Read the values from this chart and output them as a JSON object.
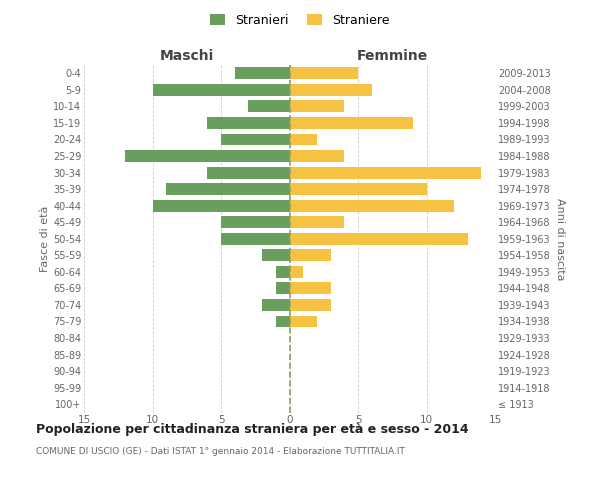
{
  "age_groups": [
    "100+",
    "95-99",
    "90-94",
    "85-89",
    "80-84",
    "75-79",
    "70-74",
    "65-69",
    "60-64",
    "55-59",
    "50-54",
    "45-49",
    "40-44",
    "35-39",
    "30-34",
    "25-29",
    "20-24",
    "15-19",
    "10-14",
    "5-9",
    "0-4"
  ],
  "birth_years": [
    "≤ 1913",
    "1914-1918",
    "1919-1923",
    "1924-1928",
    "1929-1933",
    "1934-1938",
    "1939-1943",
    "1944-1948",
    "1949-1953",
    "1954-1958",
    "1959-1963",
    "1964-1968",
    "1969-1973",
    "1974-1978",
    "1979-1983",
    "1984-1988",
    "1989-1993",
    "1994-1998",
    "1999-2003",
    "2004-2008",
    "2009-2013"
  ],
  "males": [
    0,
    0,
    0,
    0,
    0,
    1,
    2,
    1,
    1,
    2,
    5,
    5,
    10,
    9,
    6,
    12,
    5,
    6,
    3,
    10,
    4
  ],
  "females": [
    0,
    0,
    0,
    0,
    0,
    2,
    3,
    3,
    1,
    3,
    13,
    4,
    12,
    10,
    14,
    4,
    2,
    9,
    4,
    6,
    5
  ],
  "male_color": "#6a9e5f",
  "female_color": "#f5c242",
  "title": "Popolazione per cittadinanza straniera per età e sesso - 2014",
  "subtitle": "COMUNE DI USCIO (GE) - Dati ISTAT 1° gennaio 2014 - Elaborazione TUTTITALIA.IT",
  "header_left": "Maschi",
  "header_right": "Femmine",
  "ylabel_left": "Fasce di età",
  "ylabel_right": "Anni di nascita",
  "legend_male": "Stranieri",
  "legend_female": "Straniere",
  "xlim": 15,
  "background_color": "#ffffff",
  "grid_color": "#cccccc"
}
